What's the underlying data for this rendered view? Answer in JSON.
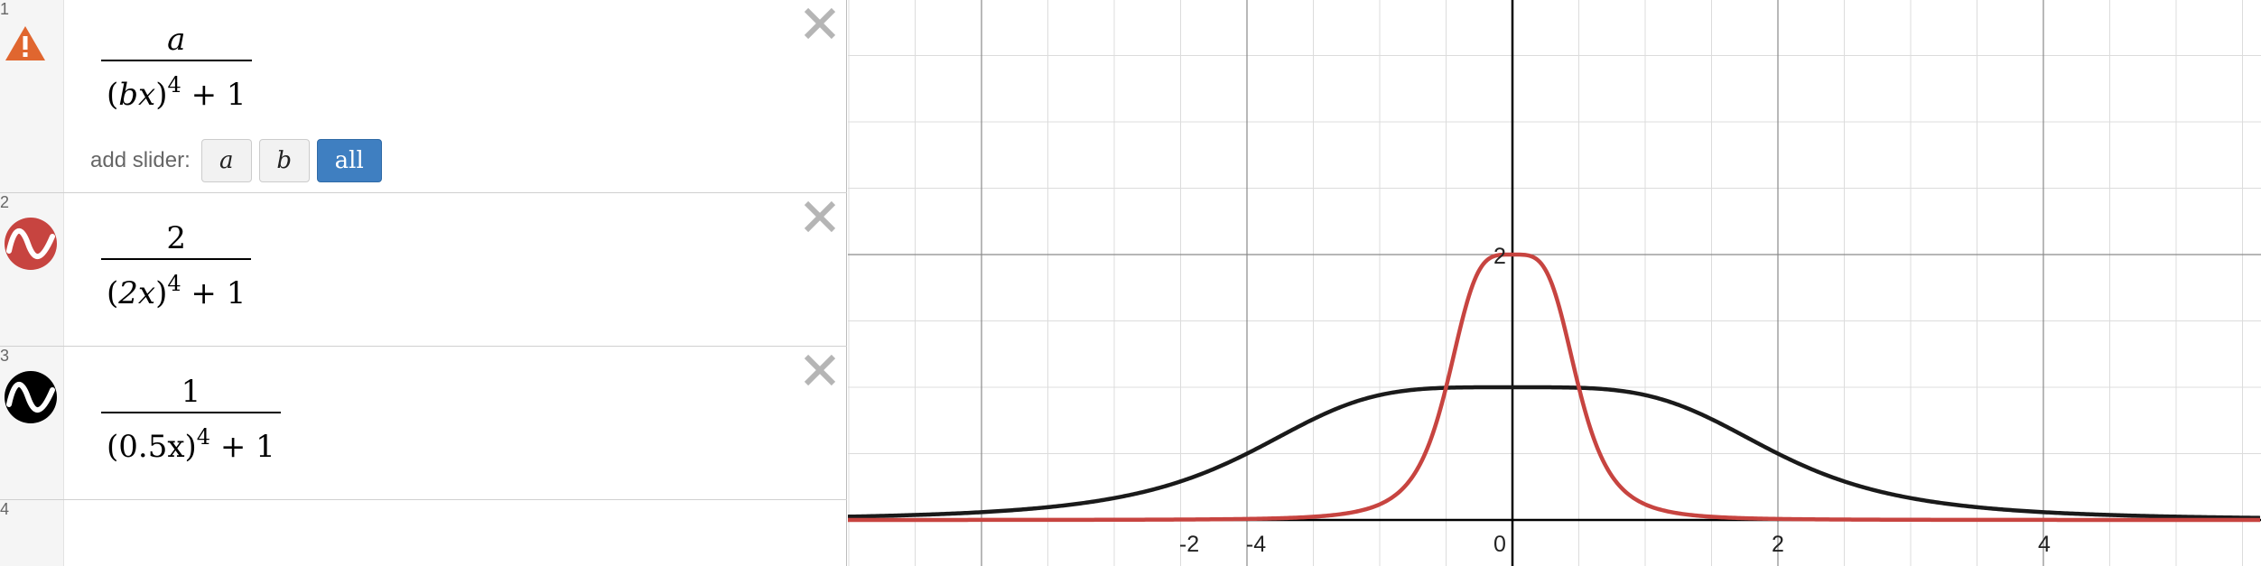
{
  "expressions": [
    {
      "index": "1",
      "icon": "warning-icon",
      "numerator": "a",
      "denominator_base": "bx",
      "exponent": "4",
      "denominator_tail": " + 1",
      "slider_label": "add slider:",
      "slider_buttons": [
        "a",
        "b",
        "all"
      ]
    },
    {
      "index": "2",
      "icon": "wave-icon",
      "color": "#c74440",
      "numerator": "2",
      "denominator_base": "2x",
      "exponent": "4",
      "denominator_tail": " + 1"
    },
    {
      "index": "3",
      "icon": "wave-icon",
      "color": "#000000",
      "numerator": "1",
      "denominator_base": "0.5x",
      "exponent": "4",
      "denominator_tail": " + 1"
    },
    {
      "index": "4"
    }
  ],
  "graph": {
    "x_ticks": [
      "-4",
      "-2",
      "0",
      "2",
      "4"
    ],
    "y_ticks": [
      "2"
    ],
    "curve_colors": {
      "red": "#c74440",
      "black": "#1a1a1a"
    }
  }
}
